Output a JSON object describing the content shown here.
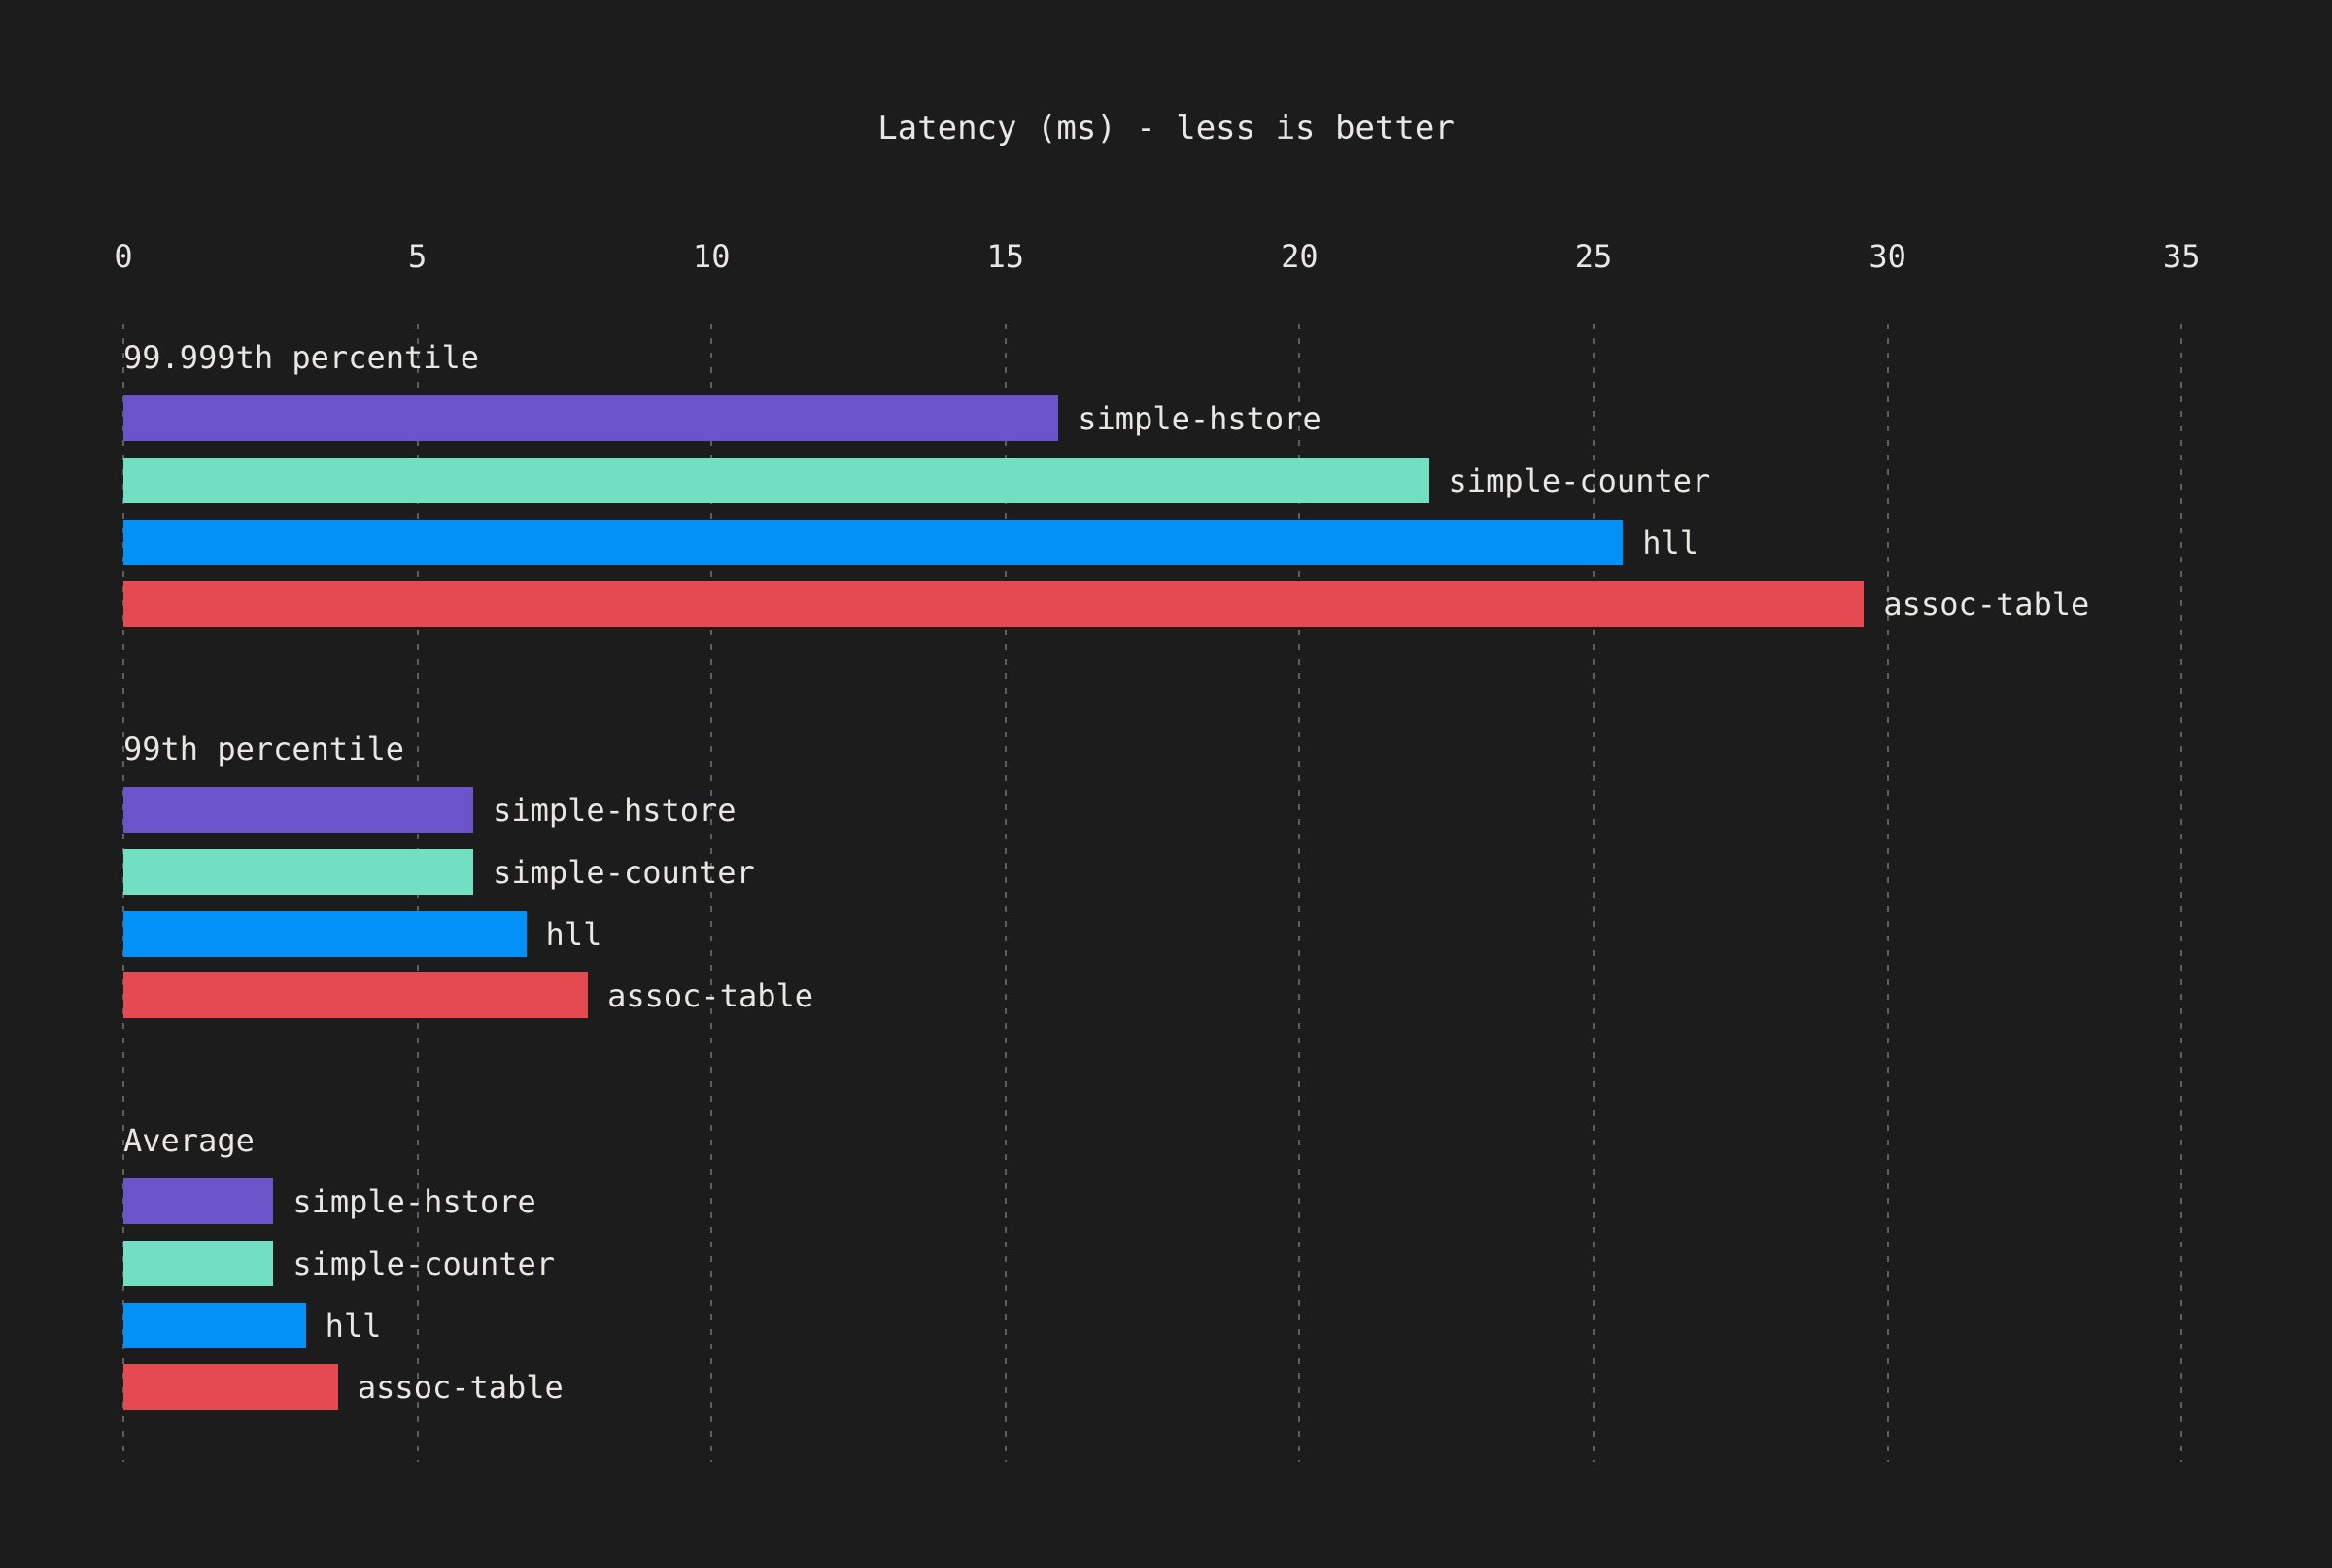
{
  "title": "Latency (ms) - less is better",
  "colors": {
    "background": "#1c1c1d",
    "text": "#e9e7e3",
    "gridline": "#5e5e5e",
    "series": {
      "simple-hstore": "#6b54c9",
      "simple-counter": "#70dfc2",
      "hll": "#0191f7",
      "assoc-table": "#e44a4f"
    }
  },
  "chart_data": {
    "type": "bar",
    "orientation": "horizontal",
    "title": "Latency (ms) - less is better",
    "xlabel": "",
    "ylabel": "",
    "xlim": [
      0,
      35
    ],
    "x_ticks": [
      0,
      5,
      10,
      15,
      20,
      25,
      30,
      35
    ],
    "grid": "vertical dashed gridlines at each x tick",
    "legend_position": "labels at bar ends",
    "unit": "ms",
    "groups": [
      {
        "label": "99.999th percentile",
        "bars": [
          {
            "name": "simple-hstore",
            "value": 15.9
          },
          {
            "name": "simple-counter",
            "value": 22.2
          },
          {
            "name": "hll",
            "value": 25.5
          },
          {
            "name": "assoc-table",
            "value": 29.6
          }
        ]
      },
      {
        "label": "99th percentile",
        "bars": [
          {
            "name": "simple-hstore",
            "value": 5.95
          },
          {
            "name": "simple-counter",
            "value": 5.95
          },
          {
            "name": "hll",
            "value": 6.85
          },
          {
            "name": "assoc-table",
            "value": 7.9
          }
        ]
      },
      {
        "label": "Average",
        "bars": [
          {
            "name": "simple-hstore",
            "value": 2.55
          },
          {
            "name": "simple-counter",
            "value": 2.55
          },
          {
            "name": "hll",
            "value": 3.1
          },
          {
            "name": "assoc-table",
            "value": 3.65
          }
        ]
      }
    ]
  }
}
